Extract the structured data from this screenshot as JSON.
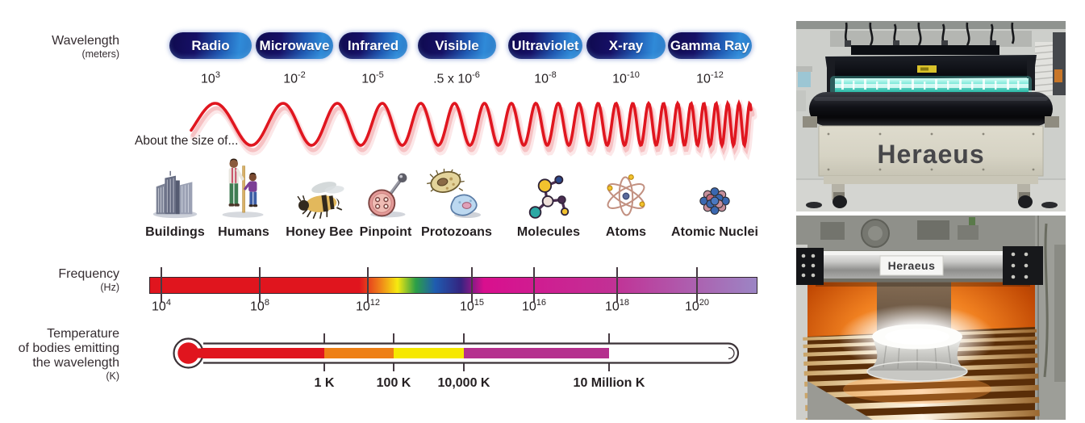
{
  "spectrum": {
    "axis_label": "Wavelength",
    "axis_unit": "(meters)",
    "bands": [
      {
        "label": "Radio",
        "value": "10",
        "exponent": "3"
      },
      {
        "label": "Microwave",
        "value": "10",
        "exponent": "-2"
      },
      {
        "label": "Infrared",
        "value": "10",
        "exponent": "-5"
      },
      {
        "label": "Visible",
        "value": ".5 x 10",
        "exponent": "-6"
      },
      {
        "label": "Ultraviolet",
        "value": "10",
        "exponent": "-8"
      },
      {
        "label": "X-ray",
        "value": "10",
        "exponent": "-10"
      },
      {
        "label": "Gamma Ray",
        "value": "10",
        "exponent": "-12"
      }
    ]
  },
  "wave": {
    "caption": "About the size of...",
    "color": "#e0161f"
  },
  "size_examples": {
    "items": [
      {
        "label": "Buildings",
        "icon": "buildings-icon"
      },
      {
        "label": "Humans",
        "icon": "humans-icon"
      },
      {
        "label": "Honey Bee",
        "icon": "honey-bee-icon"
      },
      {
        "label": "Pinpoint",
        "icon": "pinpoint-icon"
      },
      {
        "label": "Protozoans",
        "icon": "protozoans-icon"
      },
      {
        "label": "Molecules",
        "icon": "molecules-icon"
      },
      {
        "label": "Atoms",
        "icon": "atom-icon"
      },
      {
        "label": "Atomic Nuclei",
        "icon": "atomic-nuclei-icon"
      }
    ]
  },
  "frequency": {
    "label": "Frequency",
    "unit": "(Hz)",
    "ticks": [
      {
        "value": "10",
        "exponent": "4"
      },
      {
        "value": "10",
        "exponent": "8"
      },
      {
        "value": "10",
        "exponent": "12"
      },
      {
        "value": "10",
        "exponent": "15"
      },
      {
        "value": "10",
        "exponent": "16"
      },
      {
        "value": "10",
        "exponent": "18"
      },
      {
        "value": "10",
        "exponent": "20"
      }
    ]
  },
  "temperature": {
    "label_line1": "Temperature",
    "label_line2": "of bodies emitting",
    "label_line3": "the wavelength",
    "unit": "(K)",
    "ticks": [
      {
        "label": "1 K"
      },
      {
        "label": "100 K"
      },
      {
        "label": "10,000 K"
      },
      {
        "label": "10 Million K"
      }
    ]
  },
  "photos": {
    "top": {
      "logo": "Heraeus"
    },
    "bottom": {
      "logo": "Heraeus"
    }
  },
  "colors": {
    "spectrum_red": "#e0151e",
    "pill_dark_navy": "#0f0a4e",
    "pill_bright_blue": "#2f8ad8",
    "thermo_orange": "#ee7f15",
    "thermo_yellow": "#f6e800",
    "thermo_magenta": "#b5308e",
    "freq_magenta": "#d90f8e",
    "freq_violet": "#9c85c4",
    "uv_glow_teal": "#4fd8c6",
    "ir_glow_orange": "#f08020"
  }
}
